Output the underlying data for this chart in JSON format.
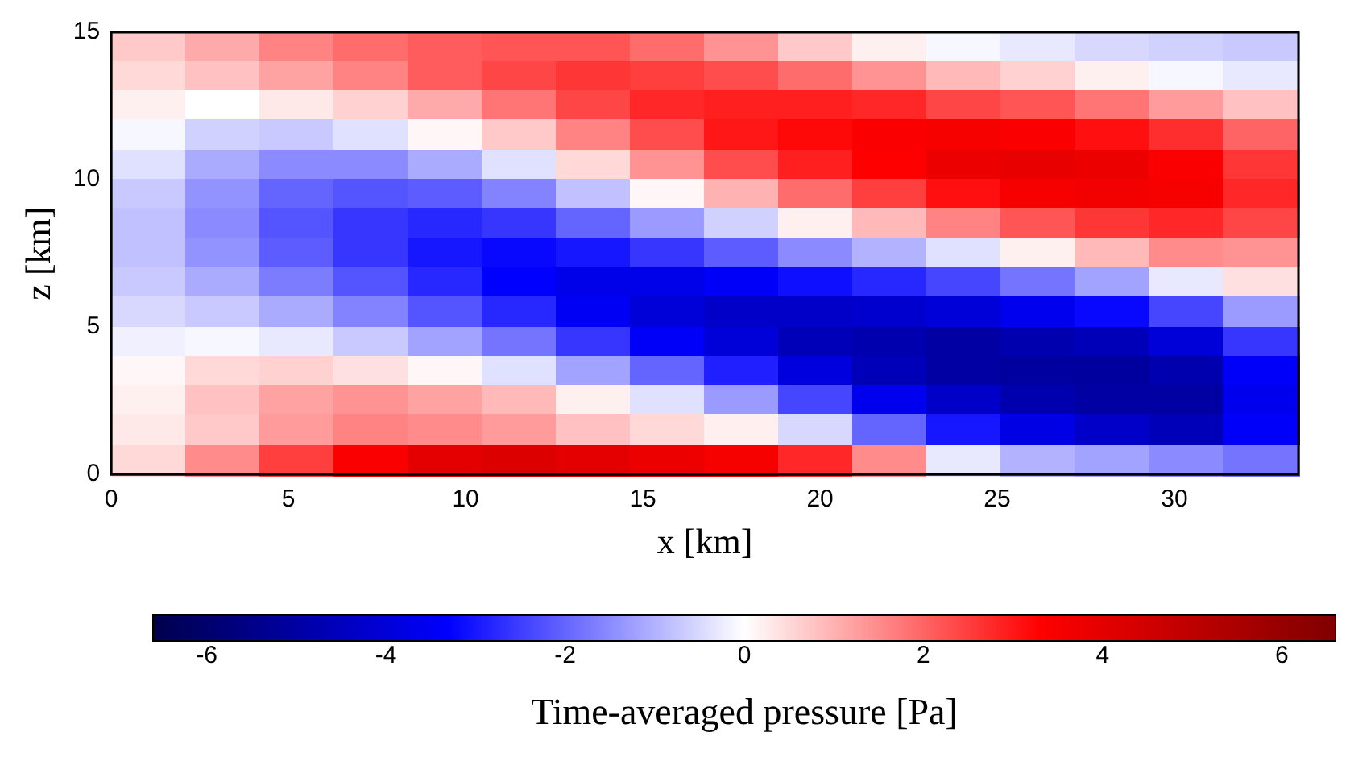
{
  "chart_data": {
    "type": "heatmap",
    "xlabel": "x [km]",
    "ylabel": "z [km]",
    "clabel": "Time-averaged pressure [Pa]",
    "xlim": [
      0,
      33.5
    ],
    "xticks": [
      0,
      5,
      10,
      15,
      20,
      25,
      30
    ],
    "ylim": [
      0,
      15
    ],
    "yticks": [
      0,
      5,
      10,
      15
    ],
    "clim": [
      -6.6,
      6.6
    ],
    "cticks": [
      -6,
      -4,
      -2,
      0,
      2,
      4,
      6
    ],
    "grid": false,
    "cells": [
      [
        0.7,
        1.1,
        1.6,
        1.9,
        2.1,
        2.2,
        2.2,
        1.9,
        1.4,
        0.7,
        0.2,
        -0.1,
        -0.3,
        -0.5,
        -0.6,
        -0.7
      ],
      [
        0.5,
        0.8,
        1.2,
        1.6,
        2.1,
        2.4,
        2.6,
        2.5,
        2.3,
        1.9,
        1.4,
        0.9,
        0.6,
        0.2,
        -0.1,
        -0.3
      ],
      [
        0.2,
        0.0,
        0.3,
        0.6,
        1.1,
        1.8,
        2.4,
        2.8,
        2.9,
        2.9,
        2.8,
        2.4,
        2.2,
        1.8,
        1.3,
        0.8
      ],
      [
        -0.1,
        -0.6,
        -0.7,
        -0.4,
        0.1,
        0.7,
        1.6,
        2.3,
        3.0,
        3.2,
        3.4,
        3.5,
        3.4,
        3.1,
        2.7,
        2.0
      ],
      [
        -0.4,
        -1.1,
        -1.5,
        -1.5,
        -1.1,
        -0.4,
        0.5,
        1.4,
        2.3,
        2.9,
        3.3,
        3.8,
        3.9,
        3.8,
        3.4,
        2.6
      ],
      [
        -0.7,
        -1.4,
        -2.0,
        -2.2,
        -2.1,
        -1.6,
        -0.8,
        0.1,
        1.0,
        1.9,
        2.5,
        3.1,
        3.5,
        3.6,
        3.5,
        2.8
      ],
      [
        -0.8,
        -1.5,
        -2.2,
        -2.6,
        -2.8,
        -2.6,
        -2.0,
        -1.3,
        -0.6,
        0.2,
        0.9,
        1.6,
        2.2,
        2.6,
        2.8,
        2.4
      ],
      [
        -0.8,
        -1.4,
        -2.1,
        -2.6,
        -3.0,
        -3.2,
        -3.0,
        -2.6,
        -2.1,
        -1.5,
        -1.0,
        -0.4,
        0.2,
        0.9,
        1.5,
        1.4
      ],
      [
        -0.7,
        -1.1,
        -1.7,
        -2.2,
        -2.8,
        -3.3,
        -3.7,
        -3.7,
        -3.4,
        -3.1,
        -2.8,
        -2.4,
        -1.8,
        -1.2,
        -0.3,
        0.4
      ],
      [
        -0.5,
        -0.7,
        -1.1,
        -1.6,
        -2.2,
        -2.8,
        -3.5,
        -4.0,
        -4.3,
        -4.3,
        -4.2,
        -4.0,
        -3.6,
        -3.2,
        -2.4,
        -1.3
      ],
      [
        -0.2,
        -0.1,
        -0.3,
        -0.7,
        -1.2,
        -1.8,
        -2.6,
        -3.4,
        -4.0,
        -4.6,
        -4.8,
        -5.0,
        -4.8,
        -4.6,
        -4.0,
        -2.6
      ],
      [
        0.1,
        0.5,
        0.6,
        0.4,
        0.1,
        -0.4,
        -1.2,
        -2.0,
        -2.9,
        -3.9,
        -4.6,
        -5.0,
        -5.1,
        -5.1,
        -4.8,
        -3.4
      ],
      [
        0.2,
        0.8,
        1.2,
        1.4,
        1.2,
        0.9,
        0.2,
        -0.4,
        -1.3,
        -2.4,
        -3.6,
        -4.3,
        -4.8,
        -5.0,
        -5.0,
        -3.6
      ],
      [
        0.3,
        0.7,
        1.3,
        1.6,
        1.5,
        1.3,
        0.8,
        0.5,
        0.2,
        -0.5,
        -2.0,
        -3.0,
        -3.8,
        -4.3,
        -4.6,
        -3.4
      ],
      [
        0.5,
        1.5,
        2.5,
        3.4,
        4.0,
        4.2,
        4.0,
        3.8,
        3.5,
        2.8,
        1.5,
        -0.3,
        -1.0,
        -1.2,
        -1.5,
        -1.8
      ]
    ]
  }
}
